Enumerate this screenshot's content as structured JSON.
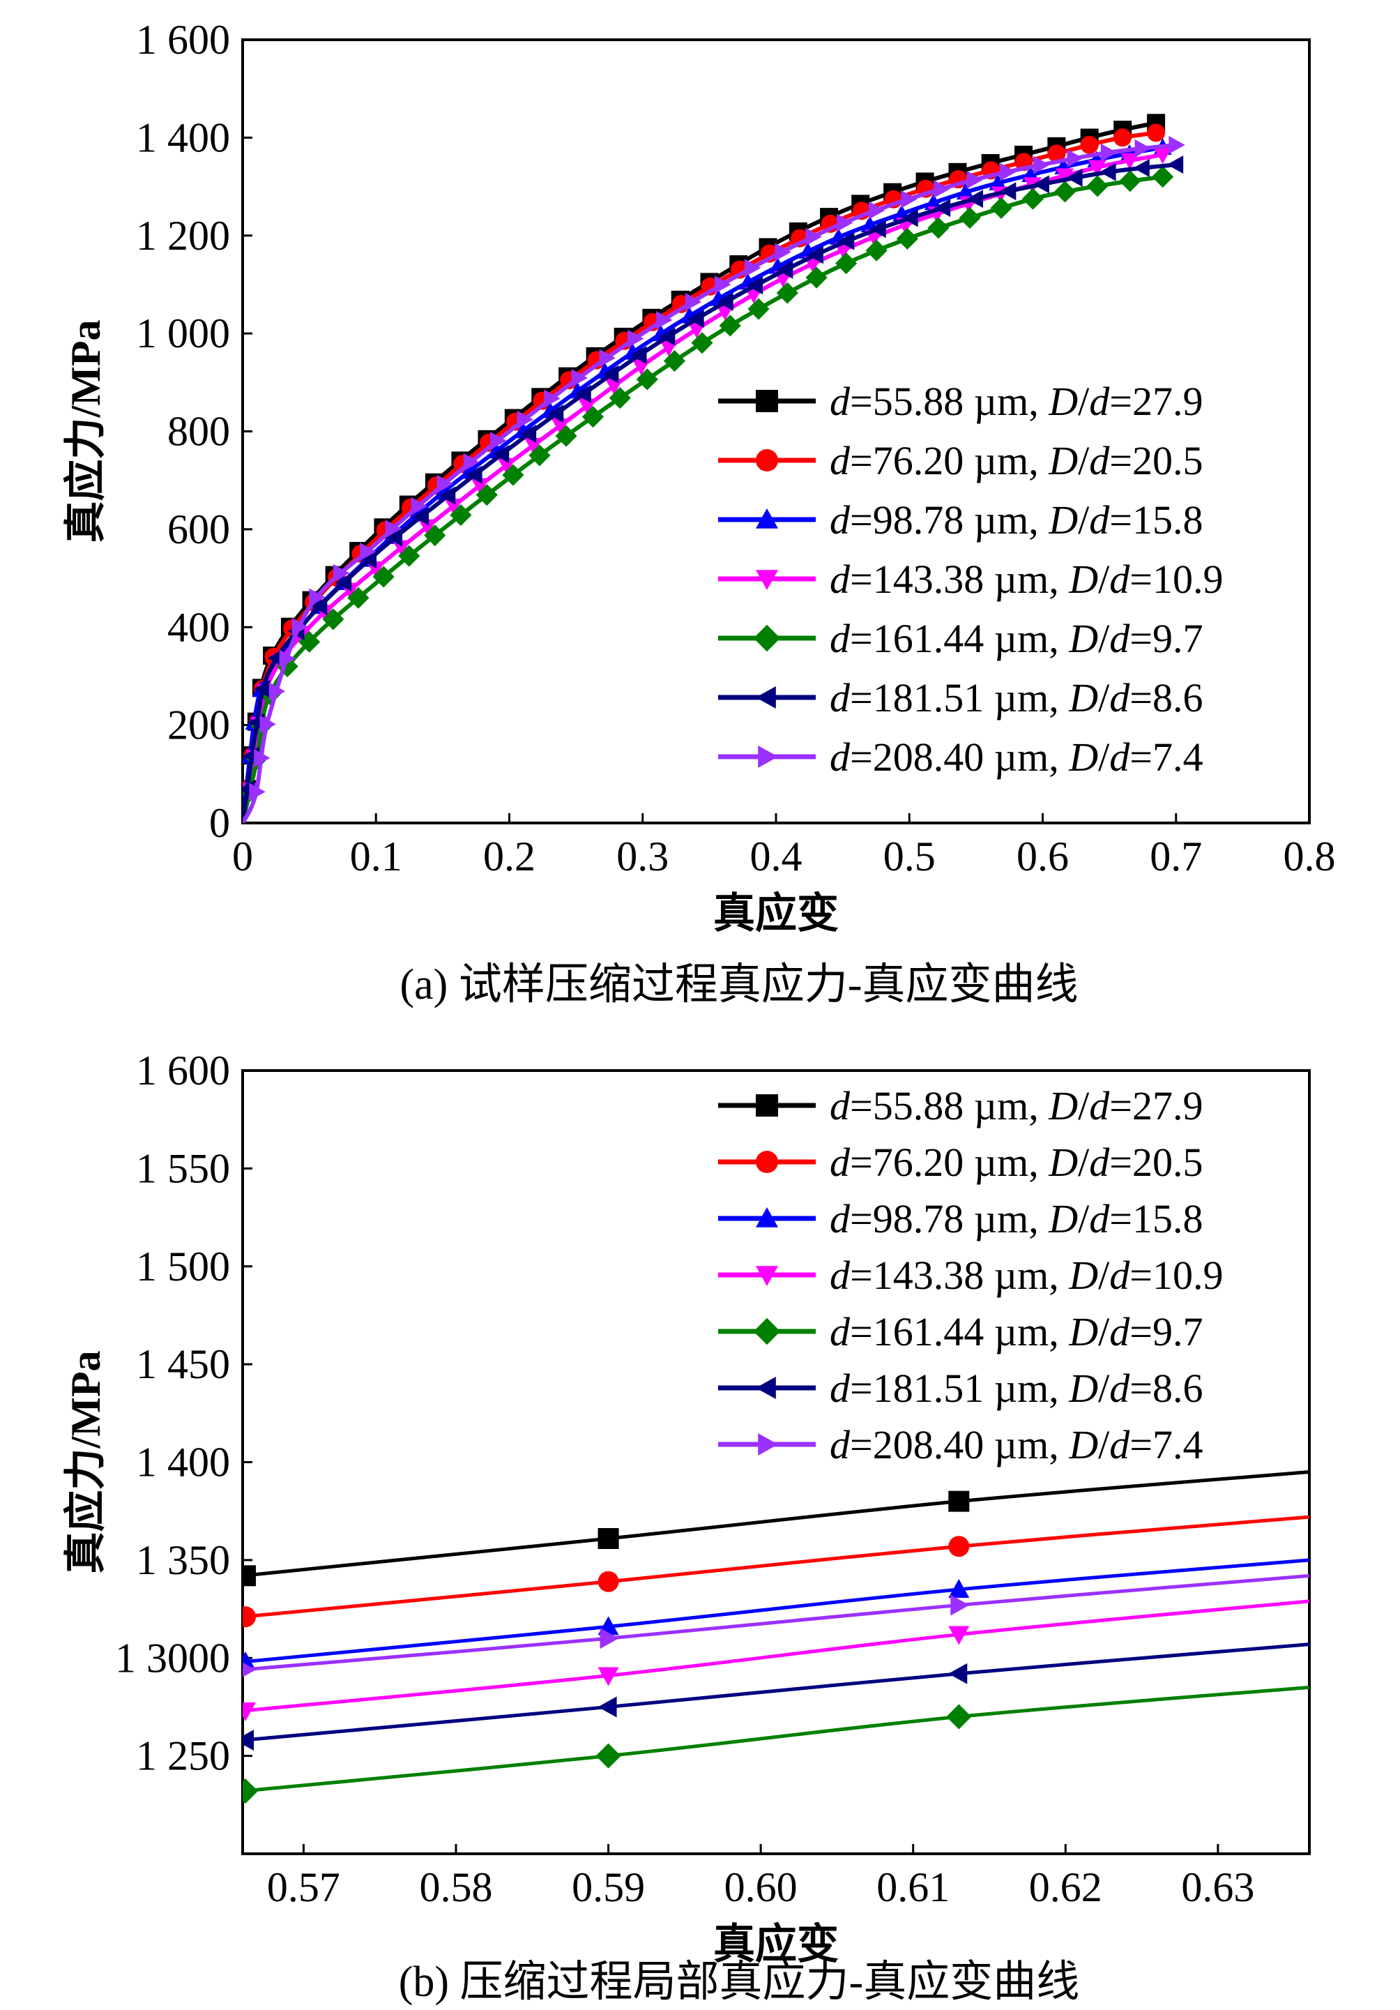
{
  "chart_data": [
    {
      "type": "line",
      "caption": "(a) 试样压缩过程真应力-真应变曲线",
      "xlabel": "真应变",
      "ylabel": "真应力/MPa",
      "xlim": [
        0,
        0.8
      ],
      "ylim": [
        0,
        1600
      ],
      "x_ticks": [
        "0",
        "0.1",
        "0.2",
        "0.3",
        "0.4",
        "0.5",
        "0.6",
        "0.7",
        "0.8"
      ],
      "y_ticks": [
        "0",
        "200",
        "400",
        "600",
        "800",
        "1 000",
        "1 200",
        "1 400",
        "1 600"
      ],
      "grid": false,
      "legend_position": "right",
      "series": [
        {
          "name": "d=55.88 µm, D/d=27.9",
          "color": "#000000",
          "marker": "square",
          "x": [
            0,
            0.01,
            0.02,
            0.05,
            0.1,
            0.15,
            0.2,
            0.25,
            0.3,
            0.35,
            0.4,
            0.45,
            0.5,
            0.55,
            0.6,
            0.65,
            0.685
          ],
          "y": [
            0,
            200,
            330,
            450,
            590,
            710,
            820,
            925,
            1020,
            1105,
            1185,
            1250,
            1300,
            1340,
            1375,
            1410,
            1430
          ]
        },
        {
          "name": "d=76.20 µm, D/d=20.5",
          "color": "#ff0000",
          "marker": "circle",
          "x": [
            0,
            0.01,
            0.02,
            0.05,
            0.1,
            0.15,
            0.2,
            0.25,
            0.3,
            0.35,
            0.4,
            0.45,
            0.5,
            0.55,
            0.6,
            0.65,
            0.685
          ],
          "y": [
            0,
            180,
            320,
            440,
            580,
            700,
            810,
            915,
            1010,
            1095,
            1170,
            1235,
            1285,
            1325,
            1360,
            1395,
            1410
          ]
        },
        {
          "name": "d=98.78 µm, D/d=15.8",
          "color": "#0000ff",
          "marker": "triangle-up",
          "x": [
            0,
            0.01,
            0.02,
            0.05,
            0.1,
            0.15,
            0.2,
            0.25,
            0.3,
            0.35,
            0.4,
            0.45,
            0.5,
            0.55,
            0.6,
            0.65,
            0.69
          ],
          "y": [
            0,
            230,
            300,
            420,
            555,
            675,
            780,
            880,
            975,
            1060,
            1135,
            1200,
            1250,
            1295,
            1330,
            1360,
            1380
          ]
        },
        {
          "name": "d=143.38 µm, D/d=10.9",
          "color": "#ff00ff",
          "marker": "triangle-down",
          "x": [
            0,
            0.01,
            0.02,
            0.05,
            0.1,
            0.15,
            0.2,
            0.25,
            0.3,
            0.35,
            0.4,
            0.45,
            0.5,
            0.55,
            0.6,
            0.65,
            0.69
          ],
          "y": [
            0,
            150,
            290,
            400,
            520,
            630,
            735,
            835,
            935,
            1025,
            1105,
            1170,
            1225,
            1270,
            1310,
            1345,
            1365
          ]
        },
        {
          "name": "d=161.44 µm, D/d=9.7",
          "color": "#008000",
          "marker": "diamond",
          "x": [
            0,
            0.01,
            0.02,
            0.05,
            0.1,
            0.15,
            0.2,
            0.25,
            0.3,
            0.35,
            0.4,
            0.45,
            0.5,
            0.55,
            0.6,
            0.65,
            0.69
          ],
          "y": [
            0,
            120,
            260,
            370,
            490,
            600,
            705,
            805,
            900,
            990,
            1070,
            1140,
            1195,
            1240,
            1280,
            1305,
            1320
          ]
        },
        {
          "name": "d=181.51 µm, D/d=8.6",
          "color": "#000080",
          "marker": "triangle-left",
          "x": [
            0,
            0.01,
            0.02,
            0.05,
            0.1,
            0.15,
            0.2,
            0.25,
            0.3,
            0.35,
            0.4,
            0.45,
            0.5,
            0.55,
            0.6,
            0.65,
            0.7
          ],
          "y": [
            0,
            190,
            310,
            420,
            550,
            660,
            765,
            865,
            960,
            1045,
            1120,
            1185,
            1235,
            1275,
            1305,
            1330,
            1345
          ]
        },
        {
          "name": "d=208.40 µm, D/d=7.4",
          "color": "#9b30ff",
          "marker": "triangle-right",
          "x": [
            0,
            0.01,
            0.02,
            0.05,
            0.1,
            0.15,
            0.2,
            0.25,
            0.3,
            0.35,
            0.4,
            0.45,
            0.5,
            0.55,
            0.6,
            0.65,
            0.7
          ],
          "y": [
            0,
            60,
            220,
            440,
            570,
            690,
            800,
            905,
            1000,
            1085,
            1160,
            1225,
            1275,
            1315,
            1345,
            1370,
            1385
          ]
        }
      ]
    },
    {
      "type": "line",
      "caption": "(b) 压缩过程局部真应力-真应变曲线",
      "xlabel": "真应变",
      "ylabel": "真应力/MPa",
      "xlim": [
        0.566,
        0.636
      ],
      "ylim": [
        1200,
        1600
      ],
      "x_ticks": [
        "0.57",
        "0.58",
        "0.59",
        "0.60",
        "0.61",
        "0.62",
        "0.63"
      ],
      "y_ticks": [
        "1 250",
        "1 3000",
        "1 350",
        "1 400",
        "1 450",
        "1 500",
        "1 550",
        "1 600"
      ],
      "grid": false,
      "legend_position": "top-right",
      "series": [
        {
          "name": "d=55.88 µm, D/d=27.9",
          "color": "#000000",
          "marker": "square",
          "x": [
            0.566,
            0.59,
            0.613,
            0.636
          ],
          "y": [
            1342,
            1361,
            1380,
            1395
          ]
        },
        {
          "name": "d=76.20 µm, D/d=20.5",
          "color": "#ff0000",
          "marker": "circle",
          "x": [
            0.566,
            0.59,
            0.613,
            0.636
          ],
          "y": [
            1321,
            1339,
            1357,
            1372
          ]
        },
        {
          "name": "d=98.78 µm, D/d=15.8",
          "color": "#0000ff",
          "marker": "triangle-up",
          "x": [
            0.566,
            0.59,
            0.613,
            0.636
          ],
          "y": [
            1298,
            1316,
            1335,
            1350
          ]
        },
        {
          "name": "d=143.38 µm, D/d=10.9",
          "color": "#ff00ff",
          "marker": "triangle-down",
          "x": [
            0.566,
            0.59,
            0.613,
            0.636
          ],
          "y": [
            1273,
            1291,
            1312,
            1329
          ]
        },
        {
          "name": "d=161.44 µm, D/d=9.7",
          "color": "#008000",
          "marker": "diamond",
          "x": [
            0.566,
            0.59,
            0.613,
            0.636
          ],
          "y": [
            1232,
            1250,
            1270,
            1285
          ]
        },
        {
          "name": "d=181.51 µm, D/d=8.6",
          "color": "#000080",
          "marker": "triangle-left",
          "x": [
            0.566,
            0.59,
            0.613,
            0.636
          ],
          "y": [
            1258,
            1275,
            1292,
            1307
          ]
        },
        {
          "name": "d=208.40 µm, D/d=7.4",
          "color": "#9b30ff",
          "marker": "triangle-right",
          "x": [
            0.566,
            0.59,
            0.613,
            0.636
          ],
          "y": [
            1294,
            1310,
            1327,
            1342
          ]
        }
      ]
    }
  ]
}
